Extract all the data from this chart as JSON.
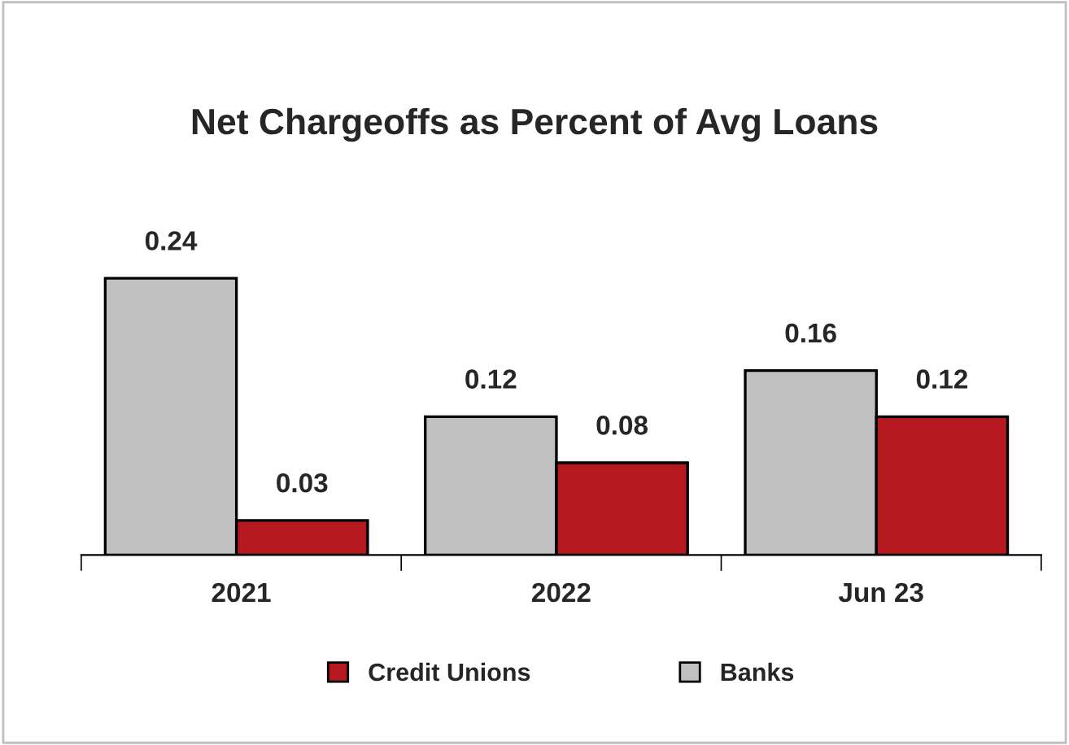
{
  "chart_data": {
    "type": "bar",
    "title": "Net Chargeoffs as Percent of Avg Loans",
    "categories": [
      "2021",
      "2022",
      "Jun 23"
    ],
    "series": [
      {
        "name": "Banks",
        "color": "#c0c0c0",
        "values": [
          0.24,
          0.12,
          0.16
        ]
      },
      {
        "name": "Credit Unions",
        "color": "#b5191f",
        "values": [
          0.03,
          0.08,
          0.12
        ]
      }
    ],
    "data_labels": true,
    "legend": "bottom",
    "grid": false
  }
}
